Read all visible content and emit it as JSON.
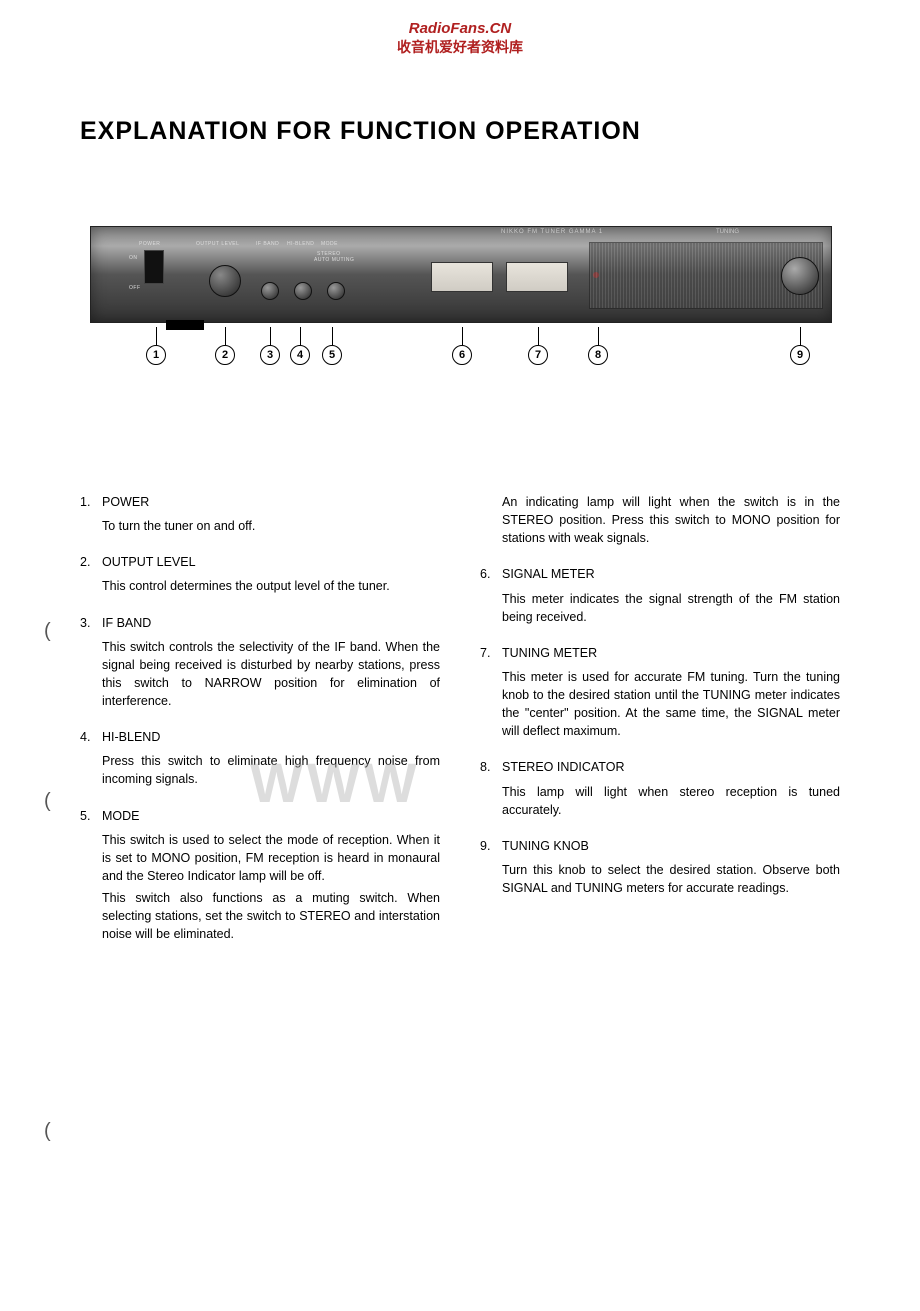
{
  "watermark": {
    "site": "RadioFans.CN",
    "subtitle": "收音机爱好者资料库",
    "big_text": "WWW"
  },
  "title": "EXPLANATION FOR FUNCTION OPERATION",
  "diagram": {
    "model_label": "NIKKO   FM TUNER GAMMA 1",
    "tuning_label": "TUNING",
    "labels": {
      "power": "POWER",
      "on": "ON",
      "off": "OFF",
      "output": "OUTPUT LEVEL",
      "ifband": "IF BAND",
      "hiblend": "HI-BLEND",
      "mode": "MODE",
      "stereo": "STEREO",
      "auto": "AUTO MUTING"
    },
    "callouts": [
      "1",
      "2",
      "3",
      "4",
      "5",
      "6",
      "7",
      "8",
      "9"
    ]
  },
  "left_items": [
    {
      "num": "1.",
      "head": "POWER",
      "paras": [
        "To turn the tuner on and off."
      ]
    },
    {
      "num": "2.",
      "head": "OUTPUT LEVEL",
      "paras": [
        "This control determines the output level of the tuner."
      ]
    },
    {
      "num": "3.",
      "head": "IF BAND",
      "paras": [
        "This switch controls the selectivity of the IF band. When the signal being received is disturbed by nearby stations, press this switch to NARROW position for elimination of interference."
      ]
    },
    {
      "num": "4.",
      "head": "HI-BLEND",
      "paras": [
        "Press this switch to eliminate high frequency noise from incoming signals."
      ]
    },
    {
      "num": "5.",
      "head": "MODE",
      "paras": [
        "This switch is used to select the mode of reception. When it is set to MONO position, FM reception is heard in monaural and the Stereo Indicator lamp will be off.",
        "This switch also functions as a muting switch. When selecting stations, set the switch to STEREO and interstation noise will be eliminated."
      ]
    }
  ],
  "right_items": [
    {
      "num": "",
      "head": "",
      "paras": [
        "An indicating lamp will light when the switch is in the STEREO position. Press this switch to MONO position for stations with weak signals."
      ]
    },
    {
      "num": "6.",
      "head": "SIGNAL METER",
      "paras": [
        "This meter indicates the signal strength of the FM station being received."
      ]
    },
    {
      "num": "7.",
      "head": "TUNING METER",
      "paras": [
        "This meter is used for accurate FM tuning. Turn the tuning knob to the desired station until the TUNING meter indicates the \"center\" position. At the same time, the SIGNAL meter will deflect maximum."
      ]
    },
    {
      "num": "8.",
      "head": "STEREO INDICATOR",
      "paras": [
        "This lamp will light when stereo reception is tuned accurately."
      ]
    },
    {
      "num": "9.",
      "head": "TUNING KNOB",
      "paras": [
        "Turn this knob to select the desired station. Observe both SIGNAL and TUNING meters for accurate readings."
      ]
    }
  ]
}
